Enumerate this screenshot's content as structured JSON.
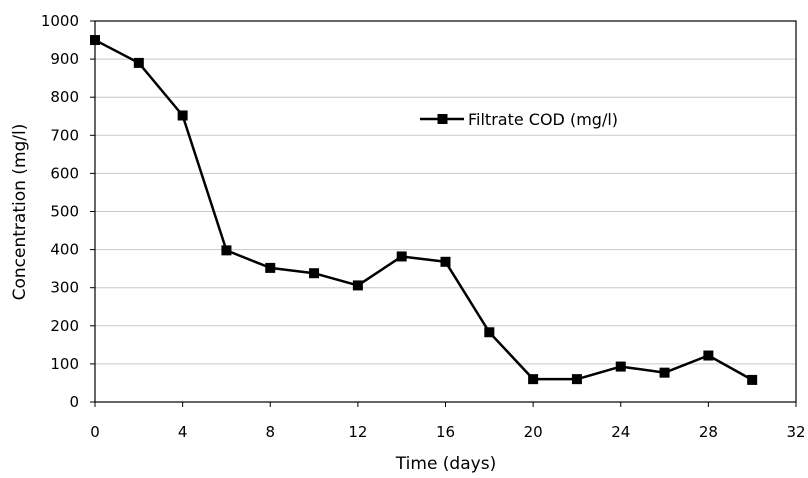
{
  "chart_data": {
    "type": "line",
    "title": "",
    "xlabel": "Time (days)",
    "ylabel": "Concentration (mg/l)",
    "xlim": [
      0,
      32
    ],
    "ylim": [
      0,
      1000
    ],
    "x_ticks": [
      0,
      4,
      8,
      12,
      16,
      20,
      24,
      28,
      32
    ],
    "y_ticks": [
      0,
      100,
      200,
      300,
      400,
      500,
      600,
      700,
      800,
      900,
      1000
    ],
    "grid": "horizontal",
    "legend_position": "upper-center",
    "series": [
      {
        "name": "Filtrate COD (mg/l)",
        "color": "#000000",
        "marker": "square",
        "x": [
          0,
          2,
          4,
          6,
          8,
          10,
          12,
          14,
          16,
          18,
          20,
          22,
          24,
          26,
          28,
          30
        ],
        "y": [
          950,
          890,
          752,
          398,
          352,
          338,
          306,
          382,
          368,
          183,
          60,
          60,
          93,
          77,
          122,
          58
        ]
      }
    ]
  }
}
